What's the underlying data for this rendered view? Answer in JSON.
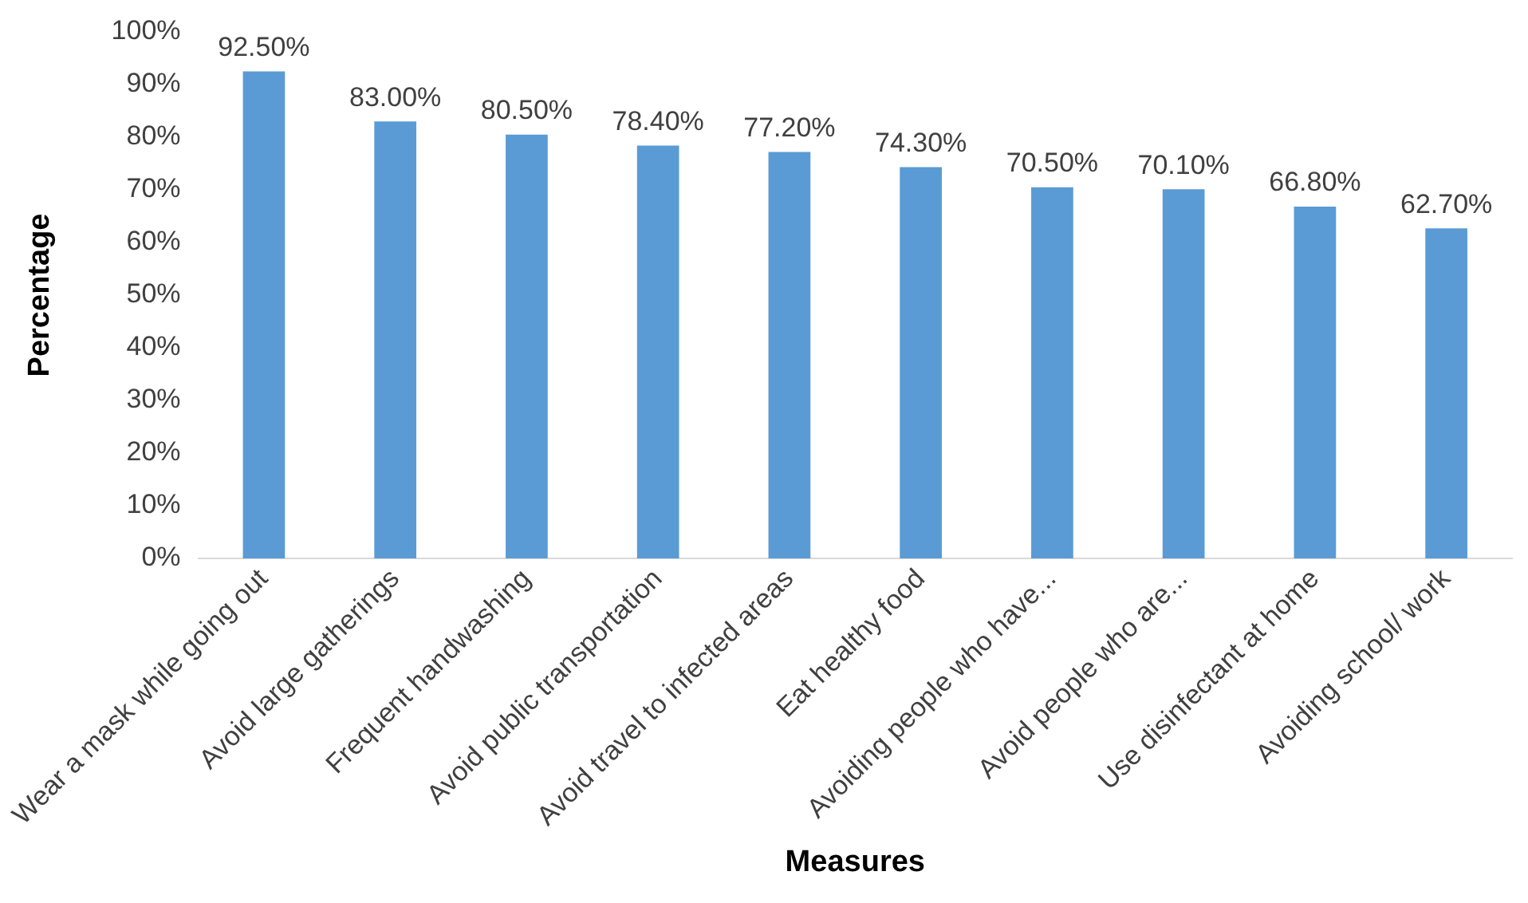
{
  "chart_data": {
    "type": "bar",
    "xlabel": "Measures",
    "ylabel": "Percentage",
    "categories": [
      "Wear a mask while going out",
      "Avoid large gatherings",
      "Frequent handwashing",
      "Avoid public transportation",
      "Avoid travel to infected areas",
      "Eat healthy food",
      "Avoiding people who have...",
      "Avoid people who are...",
      "Use disinfectant at home",
      "Avoiding school/ work"
    ],
    "values": [
      92.5,
      83.0,
      80.5,
      78.4,
      77.2,
      74.3,
      70.5,
      70.1,
      66.8,
      62.7
    ],
    "value_labels": [
      "92.50%",
      "83.00%",
      "80.50%",
      "78.40%",
      "77.20%",
      "74.30%",
      "70.50%",
      "70.10%",
      "66.80%",
      "62.70%"
    ],
    "color": "#5b9bd5",
    "ylim": [
      0,
      100
    ],
    "yticks": [
      {
        "value": 0,
        "label": "0%"
      },
      {
        "value": 10,
        "label": "10%"
      },
      {
        "value": 20,
        "label": "20%"
      },
      {
        "value": 30,
        "label": "30%"
      },
      {
        "value": 40,
        "label": "40%"
      },
      {
        "value": 50,
        "label": "50%"
      },
      {
        "value": 60,
        "label": "60%"
      },
      {
        "value": 70,
        "label": "70%"
      },
      {
        "value": 80,
        "label": "80%"
      },
      {
        "value": 90,
        "label": "90%"
      },
      {
        "value": 100,
        "label": "100%"
      }
    ],
    "grid": false,
    "legend": false
  }
}
